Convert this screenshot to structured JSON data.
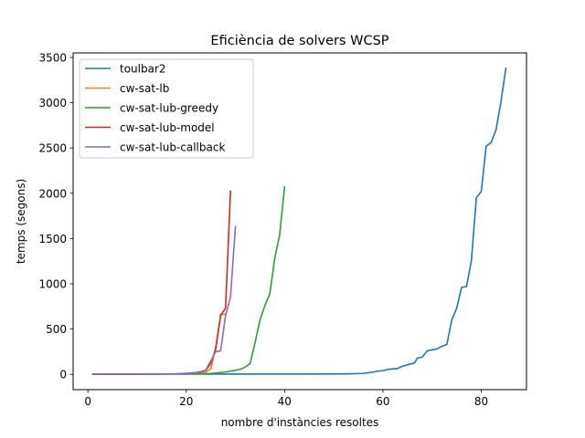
{
  "chart_data": {
    "type": "line",
    "title": "Eficiència de solvers WCSP",
    "xlabel": "nombre d'instàncies resoltes",
    "ylabel": "temps (segons)",
    "xlim": [
      -3,
      89.2
    ],
    "ylim": [
      -169,
      3550
    ],
    "xticks": [
      0,
      20,
      40,
      60,
      80
    ],
    "yticks": [
      0,
      500,
      1000,
      1500,
      2000,
      2500,
      3000,
      3500
    ],
    "grid": false,
    "legend_position": "top-left",
    "series": [
      {
        "name": "toulbar2",
        "color": "#1f77b4",
        "points": [
          [
            1,
            2
          ],
          [
            10,
            3
          ],
          [
            20,
            3
          ],
          [
            30,
            3
          ],
          [
            40,
            3
          ],
          [
            50,
            4
          ],
          [
            53,
            6
          ],
          [
            56,
            10
          ],
          [
            58,
            25
          ],
          [
            59,
            35
          ],
          [
            60,
            40
          ],
          [
            61,
            55
          ],
          [
            62,
            60
          ],
          [
            63,
            65
          ],
          [
            64,
            90
          ],
          [
            65,
            105
          ],
          [
            66,
            120
          ],
          [
            66.5,
            130
          ],
          [
            67,
            180
          ],
          [
            68,
            190
          ],
          [
            69,
            260
          ],
          [
            70,
            270
          ],
          [
            71,
            280
          ],
          [
            72,
            310
          ],
          [
            73,
            330
          ],
          [
            74,
            600
          ],
          [
            75,
            730
          ],
          [
            76,
            960
          ],
          [
            77,
            970
          ],
          [
            78,
            1260
          ],
          [
            79,
            1950
          ],
          [
            80,
            2020
          ],
          [
            81,
            2520
          ],
          [
            82,
            2560
          ],
          [
            83,
            2700
          ],
          [
            84,
            3010
          ],
          [
            85,
            3380
          ]
        ]
      },
      {
        "name": "cw-sat-lb",
        "color": "#ff7f0e",
        "points": [
          [
            1,
            2
          ],
          [
            10,
            3
          ],
          [
            18,
            5
          ],
          [
            20,
            8
          ],
          [
            22,
            15
          ],
          [
            24,
            25
          ],
          [
            25,
            60
          ],
          [
            26,
            300
          ],
          [
            27,
            660
          ],
          [
            28,
            665
          ]
        ]
      },
      {
        "name": "cw-sat-lub-greedy",
        "color": "#2ca02c",
        "points": [
          [
            1,
            2
          ],
          [
            10,
            3
          ],
          [
            20,
            4
          ],
          [
            25,
            10
          ],
          [
            28,
            25
          ],
          [
            30,
            45
          ],
          [
            31,
            55
          ],
          [
            32,
            80
          ],
          [
            33,
            120
          ],
          [
            34,
            350
          ],
          [
            35,
            600
          ],
          [
            36,
            760
          ],
          [
            37,
            890
          ],
          [
            38,
            1280
          ],
          [
            39,
            1540
          ],
          [
            40,
            2070
          ]
        ]
      },
      {
        "name": "cw-sat-lub-model",
        "color": "#d62728",
        "points": [
          [
            1,
            2
          ],
          [
            10,
            3
          ],
          [
            18,
            6
          ],
          [
            20,
            10
          ],
          [
            22,
            20
          ],
          [
            23,
            30
          ],
          [
            24,
            45
          ],
          [
            25,
            120
          ],
          [
            26,
            280
          ],
          [
            27,
            650
          ],
          [
            28,
            730
          ],
          [
            29,
            2020
          ]
        ]
      },
      {
        "name": "cw-sat-lub-callback",
        "color": "#9467bd",
        "points": [
          [
            1,
            2
          ],
          [
            10,
            3
          ],
          [
            18,
            6
          ],
          [
            20,
            12
          ],
          [
            22,
            20
          ],
          [
            23,
            25
          ],
          [
            24,
            50
          ],
          [
            25,
            150
          ],
          [
            26,
            250
          ],
          [
            27,
            260
          ],
          [
            28,
            650
          ],
          [
            29,
            850
          ],
          [
            30,
            1630
          ]
        ]
      }
    ]
  }
}
